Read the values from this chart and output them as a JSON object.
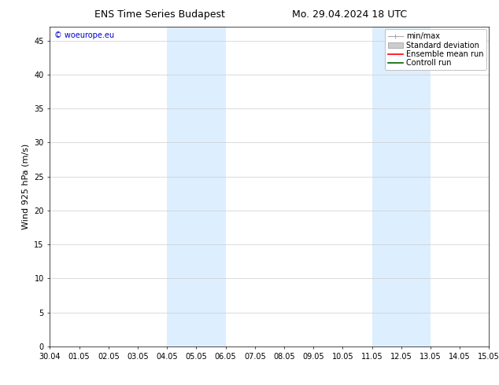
{
  "title_left": "ENS Time Series Budapest",
  "title_right": "Mo. 29.04.2024 18 UTC",
  "ylabel": "Wind 925 hPa (m/s)",
  "watermark": "© woeurope.eu",
  "xtick_labels": [
    "30.04",
    "01.05",
    "02.05",
    "03.05",
    "04.05",
    "05.05",
    "06.05",
    "07.05",
    "08.05",
    "09.05",
    "10.05",
    "11.05",
    "12.05",
    "13.05",
    "14.05",
    "15.05"
  ],
  "xtick_positions": [
    0,
    1,
    2,
    3,
    4,
    5,
    6,
    7,
    8,
    9,
    10,
    11,
    12,
    13,
    14,
    15
  ],
  "ylim": [
    0,
    47
  ],
  "ytick_positions": [
    0,
    5,
    10,
    15,
    20,
    25,
    30,
    35,
    40,
    45
  ],
  "ytick_labels": [
    "0",
    "5",
    "10",
    "15",
    "20",
    "25",
    "30",
    "35",
    "40",
    "45"
  ],
  "shaded_regions": [
    {
      "start": 4,
      "end": 6
    },
    {
      "start": 11,
      "end": 13
    }
  ],
  "shaded_color": "#ddeeff",
  "legend_entries": [
    {
      "label": "min/max",
      "color": "#aaaaaa",
      "type": "errorbar"
    },
    {
      "label": "Standard deviation",
      "color": "#cccccc",
      "type": "bar"
    },
    {
      "label": "Ensemble mean run",
      "color": "red",
      "type": "line"
    },
    {
      "label": "Controll run",
      "color": "darkgreen",
      "type": "line"
    }
  ],
  "background_color": "#ffffff",
  "grid_color": "#cccccc",
  "title_fontsize": 9,
  "axis_label_fontsize": 8,
  "tick_fontsize": 7,
  "legend_fontsize": 7,
  "watermark_color": "#0000cc",
  "watermark_fontsize": 7
}
